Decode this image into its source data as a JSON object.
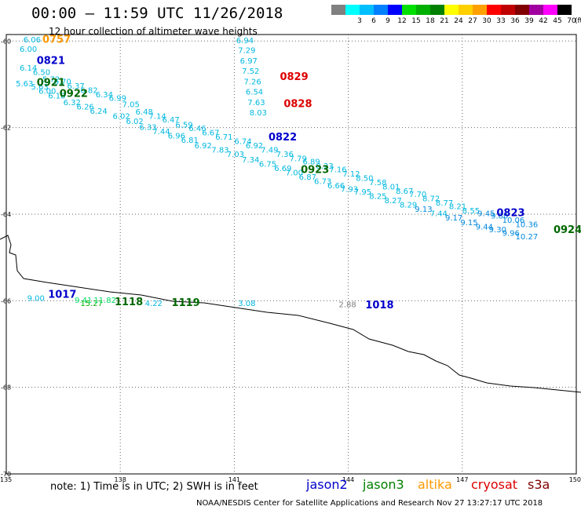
{
  "header": {
    "title": "00:00 – 11:59 UTC 11/26/2018",
    "subtitle": "12 hour collection of altimeter wave heights"
  },
  "legend": {
    "boxes": [
      {
        "color": "#808080",
        "label": ""
      },
      {
        "color": "#00ffff",
        "label": "3"
      },
      {
        "color": "#00bfff",
        "label": "6"
      },
      {
        "color": "#0080ff",
        "label": "9"
      },
      {
        "color": "#0000ff",
        "label": "12"
      },
      {
        "color": "#00e000",
        "label": "15"
      },
      {
        "color": "#00b000",
        "label": "18"
      },
      {
        "color": "#008000",
        "label": "21"
      },
      {
        "color": "#ffff00",
        "label": "24"
      },
      {
        "color": "#ffd000",
        "label": "27"
      },
      {
        "color": "#ffa000",
        "label": "30"
      },
      {
        "color": "#ff0000",
        "label": "33"
      },
      {
        "color": "#c00000",
        "label": "36"
      },
      {
        "color": "#800000",
        "label": "39"
      },
      {
        "color": "#a000a0",
        "label": "42"
      },
      {
        "color": "#ff00ff",
        "label": "45"
      },
      {
        "color": "#000000",
        "label": "70"
      }
    ],
    "unit": "(ft)"
  },
  "axes": {
    "lon_labels": [
      "135",
      "138",
      "141",
      "144",
      "147",
      "150"
    ],
    "lat_labels": [
      "-60",
      "-62",
      "-64",
      "-66",
      "-68",
      "-70"
    ]
  },
  "footer": {
    "note": "note:  1) Time is in UTC;  2) SWH is in feet",
    "satellites": [
      {
        "name": "jason2",
        "color": "#0000cc"
      },
      {
        "name": "jason3",
        "color": "#008000"
      },
      {
        "name": "altika",
        "color": "#ff9900"
      },
      {
        "name": "cryosat",
        "color": "#dd0000"
      },
      {
        "name": "s3a",
        "color": "#800000"
      }
    ],
    "credit": "NOAA/NESDIS Center for Satellite Applications and Research    Nov 27 13:27:17 UTC 2018"
  },
  "coast": [
    [
      0,
      305
    ],
    [
      10,
      300
    ],
    [
      14,
      312
    ],
    [
      12,
      322
    ],
    [
      20,
      325
    ],
    [
      22,
      345
    ],
    [
      30,
      355
    ],
    [
      60,
      360
    ],
    [
      100,
      366
    ],
    [
      140,
      372
    ],
    [
      180,
      376
    ],
    [
      220,
      384
    ],
    [
      260,
      386
    ],
    [
      300,
      392
    ],
    [
      340,
      398
    ],
    [
      380,
      402
    ],
    [
      420,
      412
    ],
    [
      450,
      420
    ],
    [
      470,
      432
    ],
    [
      500,
      440
    ],
    [
      520,
      448
    ],
    [
      540,
      452
    ],
    [
      555,
      460
    ],
    [
      570,
      466
    ],
    [
      585,
      478
    ],
    [
      600,
      482
    ],
    [
      620,
      488
    ],
    [
      650,
      492
    ],
    [
      680,
      494
    ],
    [
      700,
      496
    ],
    [
      720,
      498
    ],
    [
      740,
      500
    ]
  ],
  "time_labels": [
    {
      "text": "0757",
      "lon": 135.95,
      "lat": -60.04,
      "color": "#ff9900"
    },
    {
      "text": "0821",
      "lon": 135.8,
      "lat": -60.53,
      "color": "#0000cc"
    },
    {
      "text": "0921",
      "lon": 135.8,
      "lat": -61.04,
      "color": "#006600"
    },
    {
      "text": "0922",
      "lon": 136.4,
      "lat": -61.29,
      "color": "#006600"
    },
    {
      "text": "0829",
      "lon": 142.2,
      "lat": -60.9,
      "color": "#dd0000"
    },
    {
      "text": "0828",
      "lon": 142.3,
      "lat": -61.53,
      "color": "#dd0000"
    },
    {
      "text": "0822",
      "lon": 141.9,
      "lat": -62.3,
      "color": "#0000cc"
    },
    {
      "text": "0923",
      "lon": 142.75,
      "lat": -63.05,
      "color": "#006600"
    },
    {
      "text": "0823",
      "lon": 147.9,
      "lat": -64.05,
      "color": "#0000cc"
    },
    {
      "text": "0924",
      "lon": 149.4,
      "lat": -64.44,
      "color": "#006600"
    },
    {
      "text": "1017",
      "lon": 136.1,
      "lat": -65.93,
      "color": "#0000cc"
    },
    {
      "text": "1118",
      "lon": 137.85,
      "lat": -66.1,
      "color": "#006600"
    },
    {
      "text": "1119",
      "lon": 139.35,
      "lat": -66.12,
      "color": "#006600"
    },
    {
      "text": "1018",
      "lon": 144.45,
      "lat": -66.18,
      "color": "#0000cc"
    }
  ],
  "swh_labels": [
    {
      "text": "6.06",
      "lon": 135.45,
      "lat": -60.03,
      "color": "#00b8e0"
    },
    {
      "text": "6.00",
      "lon": 135.35,
      "lat": -60.25,
      "color": "#00b8e0"
    },
    {
      "text": "6.14",
      "lon": 135.35,
      "lat": -60.68,
      "color": "#00b8e0"
    },
    {
      "text": "6.50",
      "lon": 135.7,
      "lat": -60.78,
      "color": "#00b8e0"
    },
    {
      "text": "5.72",
      "lon": 135.95,
      "lat": -60.95,
      "color": "#00b8e0"
    },
    {
      "text": "6.70",
      "lon": 136.25,
      "lat": -61.0,
      "color": "#00b8e0"
    },
    {
      "text": "6.37",
      "lon": 136.6,
      "lat": -61.1,
      "color": "#00b8e0"
    },
    {
      "text": "6.82",
      "lon": 136.95,
      "lat": -61.2,
      "color": "#00b8e0"
    },
    {
      "text": "6.34",
      "lon": 137.35,
      "lat": -61.3,
      "color": "#00b8e0"
    },
    {
      "text": "6.99",
      "lon": 137.7,
      "lat": -61.38,
      "color": "#00b8e0"
    },
    {
      "text": "7.05",
      "lon": 138.05,
      "lat": -61.53,
      "color": "#00b8e0"
    },
    {
      "text": "6.48",
      "lon": 138.4,
      "lat": -61.7,
      "color": "#00b8e0"
    },
    {
      "text": "7.14",
      "lon": 138.75,
      "lat": -61.8,
      "color": "#00b8e0"
    },
    {
      "text": "6.47",
      "lon": 139.1,
      "lat": -61.88,
      "color": "#00b8e0"
    },
    {
      "text": "6.59",
      "lon": 139.45,
      "lat": -62.0,
      "color": "#00b8e0"
    },
    {
      "text": "6.46",
      "lon": 139.8,
      "lat": -62.08,
      "color": "#00b8e0"
    },
    {
      "text": "6.67",
      "lon": 140.15,
      "lat": -62.18,
      "color": "#00b8e0"
    },
    {
      "text": "6.71",
      "lon": 140.5,
      "lat": -62.28,
      "color": "#00b8e0"
    },
    {
      "text": "6.74",
      "lon": 141.0,
      "lat": -62.38,
      "color": "#00b8e0"
    },
    {
      "text": "6.92",
      "lon": 141.3,
      "lat": -62.48,
      "color": "#00b8e0"
    },
    {
      "text": "7.49",
      "lon": 141.7,
      "lat": -62.58,
      "color": "#00b8e0"
    },
    {
      "text": "7.36",
      "lon": 142.1,
      "lat": -62.68,
      "color": "#00b8e0"
    },
    {
      "text": "7.79",
      "lon": 142.45,
      "lat": -62.78,
      "color": "#00b8e0"
    },
    {
      "text": "6.89",
      "lon": 142.8,
      "lat": -62.85,
      "color": "#00b8e0"
    },
    {
      "text": "8.23",
      "lon": 143.15,
      "lat": -62.95,
      "color": "#00b8e0"
    },
    {
      "text": "7.16",
      "lon": 143.5,
      "lat": -63.03,
      "color": "#00b8e0"
    },
    {
      "text": "7.12",
      "lon": 143.85,
      "lat": -63.13,
      "color": "#00b8e0"
    },
    {
      "text": "8.50",
      "lon": 144.2,
      "lat": -63.23,
      "color": "#00b8e0"
    },
    {
      "text": "7.58",
      "lon": 144.55,
      "lat": -63.33,
      "color": "#00b8e0"
    },
    {
      "text": "8.01",
      "lon": 144.9,
      "lat": -63.43,
      "color": "#00b8e0"
    },
    {
      "text": "8.67",
      "lon": 145.25,
      "lat": -63.53,
      "color": "#00b8e0"
    },
    {
      "text": "7.70",
      "lon": 145.6,
      "lat": -63.6,
      "color": "#00b8e0"
    },
    {
      "text": "8.72",
      "lon": 145.95,
      "lat": -63.7,
      "color": "#00b8e0"
    },
    {
      "text": "8.77",
      "lon": 146.3,
      "lat": -63.8,
      "color": "#00b8e0"
    },
    {
      "text": "8.21",
      "lon": 146.65,
      "lat": -63.88,
      "color": "#00b8e0"
    },
    {
      "text": "8.55",
      "lon": 147.0,
      "lat": -63.98,
      "color": "#00b8e0"
    },
    {
      "text": "9.45",
      "lon": 147.4,
      "lat": -64.05,
      "color": "#0088dd"
    },
    {
      "text": "9.80",
      "lon": 147.75,
      "lat": -64.1,
      "color": "#0088dd"
    },
    {
      "text": "10.06",
      "lon": 148.05,
      "lat": -64.2,
      "color": "#0088dd"
    },
    {
      "text": "10.36",
      "lon": 148.4,
      "lat": -64.3,
      "color": "#0088dd"
    },
    {
      "text": "5.63",
      "lon": 135.25,
      "lat": -61.05,
      "color": "#00b8e0"
    },
    {
      "text": "5.63",
      "lon": 135.65,
      "lat": -61.12,
      "color": "#00b8e0"
    },
    {
      "text": "6.00",
      "lon": 135.85,
      "lat": -61.22,
      "color": "#00b8e0"
    },
    {
      "text": "6.18",
      "lon": 136.1,
      "lat": -61.33,
      "color": "#00b8e0"
    },
    {
      "text": "6.32",
      "lon": 136.5,
      "lat": -61.48,
      "color": "#00b8e0"
    },
    {
      "text": "6.26",
      "lon": 136.85,
      "lat": -61.58,
      "color": "#00b8e0"
    },
    {
      "text": "6.24",
      "lon": 137.2,
      "lat": -61.68,
      "color": "#00b8e0"
    },
    {
      "text": "6.02",
      "lon": 137.8,
      "lat": -61.8,
      "color": "#00b8e0"
    },
    {
      "text": "6.02",
      "lon": 138.15,
      "lat": -61.92,
      "color": "#00b8e0"
    },
    {
      "text": "6.33",
      "lon": 138.5,
      "lat": -62.05,
      "color": "#00b8e0"
    },
    {
      "text": "7.44",
      "lon": 138.85,
      "lat": -62.15,
      "color": "#00b8e0"
    },
    {
      "text": "6.96",
      "lon": 139.25,
      "lat": -62.25,
      "color": "#00b8e0"
    },
    {
      "text": "6.81",
      "lon": 139.6,
      "lat": -62.35,
      "color": "#00b8e0"
    },
    {
      "text": "6.92",
      "lon": 139.95,
      "lat": -62.48,
      "color": "#00b8e0"
    },
    {
      "text": "7.83",
      "lon": 140.4,
      "lat": -62.58,
      "color": "#00b8e0"
    },
    {
      "text": "7.03",
      "lon": 140.8,
      "lat": -62.68,
      "color": "#00b8e0"
    },
    {
      "text": "7.34",
      "lon": 141.2,
      "lat": -62.8,
      "color": "#00b8e0"
    },
    {
      "text": "6.75",
      "lon": 141.65,
      "lat": -62.9,
      "color": "#00b8e0"
    },
    {
      "text": "6.69",
      "lon": 142.05,
      "lat": -63.0,
      "color": "#00b8e0"
    },
    {
      "text": "7.00",
      "lon": 142.35,
      "lat": -63.1,
      "color": "#00b8e0"
    },
    {
      "text": "6.87",
      "lon": 142.7,
      "lat": -63.2,
      "color": "#00b8e0"
    },
    {
      "text": "6.73",
      "lon": 143.1,
      "lat": -63.3,
      "color": "#00b8e0"
    },
    {
      "text": "6.66",
      "lon": 143.45,
      "lat": -63.4,
      "color": "#00b8e0"
    },
    {
      "text": "7.93",
      "lon": 143.8,
      "lat": -63.48,
      "color": "#00b8e0"
    },
    {
      "text": "7.95",
      "lon": 144.15,
      "lat": -63.55,
      "color": "#00b8e0"
    },
    {
      "text": "8.25",
      "lon": 144.55,
      "lat": -63.65,
      "color": "#00b8e0"
    },
    {
      "text": "8.27",
      "lon": 144.95,
      "lat": -63.75,
      "color": "#00b8e0"
    },
    {
      "text": "8.29",
      "lon": 145.35,
      "lat": -63.85,
      "color": "#00b8e0"
    },
    {
      "text": "9.13",
      "lon": 145.75,
      "lat": -63.95,
      "color": "#0088dd"
    },
    {
      "text": "7.44",
      "lon": 146.15,
      "lat": -64.05,
      "color": "#00b8e0"
    },
    {
      "text": "9.17",
      "lon": 146.55,
      "lat": -64.15,
      "color": "#0088dd"
    },
    {
      "text": "9.15",
      "lon": 146.95,
      "lat": -64.25,
      "color": "#0088dd"
    },
    {
      "text": "9.44",
      "lon": 147.35,
      "lat": -64.35,
      "color": "#0088dd"
    },
    {
      "text": "9.30",
      "lon": 147.7,
      "lat": -64.42,
      "color": "#0088dd"
    },
    {
      "text": "9.96",
      "lon": 148.05,
      "lat": -64.5,
      "color": "#0088dd"
    },
    {
      "text": "10.27",
      "lon": 148.4,
      "lat": -64.58,
      "color": "#0088dd"
    },
    {
      "text": "6.94",
      "lon": 141.05,
      "lat": -60.05,
      "color": "#00b8e0"
    },
    {
      "text": "7.29",
      "lon": 141.1,
      "lat": -60.28,
      "color": "#00b8e0"
    },
    {
      "text": "6.97",
      "lon": 141.15,
      "lat": -60.52,
      "color": "#00b8e0"
    },
    {
      "text": "7.52",
      "lon": 141.2,
      "lat": -60.76,
      "color": "#00b8e0"
    },
    {
      "text": "7.26",
      "lon": 141.25,
      "lat": -61.0,
      "color": "#00b8e0"
    },
    {
      "text": "6.54",
      "lon": 141.3,
      "lat": -61.24,
      "color": "#00b8e0"
    },
    {
      "text": "7.63",
      "lon": 141.35,
      "lat": -61.48,
      "color": "#00b8e0"
    },
    {
      "text": "8.03",
      "lon": 141.4,
      "lat": -61.72,
      "color": "#00b8e0"
    },
    {
      "text": "9.00",
      "lon": 135.55,
      "lat": -66.0,
      "color": "#00b8e0"
    },
    {
      "text": "9.41",
      "lon": 136.8,
      "lat": -66.05,
      "color": "#00dd66"
    },
    {
      "text": "15.27",
      "lon": 136.95,
      "lat": -66.12,
      "color": "#00b000"
    },
    {
      "text": "11.82",
      "lon": 137.3,
      "lat": -66.05,
      "color": "#00dd66"
    },
    {
      "text": "4.22",
      "lon": 138.65,
      "lat": -66.12,
      "color": "#00b8e0"
    },
    {
      "text": "3.08",
      "lon": 141.1,
      "lat": -66.12,
      "color": "#00b8e0"
    },
    {
      "text": "2.88",
      "lon": 143.75,
      "lat": -66.15,
      "color": "#808080"
    }
  ]
}
